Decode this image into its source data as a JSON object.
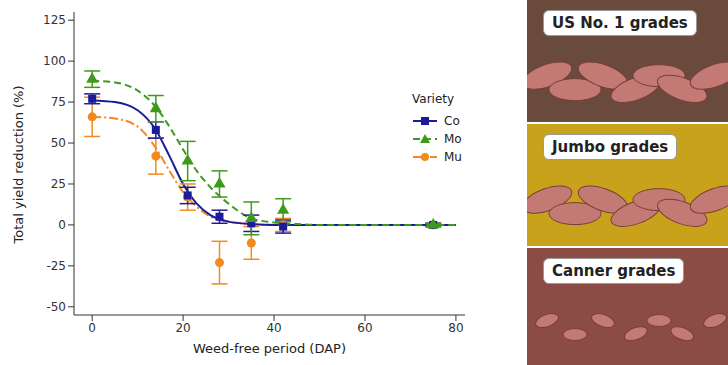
{
  "chart_data": {
    "type": "scatter",
    "x_label": "Weed-free period (DAP)",
    "y_label": "Total yield reduction (%)",
    "x": [
      0,
      14,
      21,
      28,
      35,
      42,
      75
    ],
    "xlim": [
      -4,
      82
    ],
    "xticks": [
      0,
      20,
      40,
      60,
      80
    ],
    "ylim": [
      -55,
      130
    ],
    "yticks": [
      -50,
      -25,
      0,
      25,
      50,
      75,
      100,
      125
    ],
    "grid": false,
    "legend": "right",
    "legend_title": "Variety",
    "fit_x": [
      0,
      5,
      10,
      14,
      17,
      20,
      23,
      26,
      30,
      35,
      40,
      45,
      50,
      60,
      80
    ],
    "series": [
      {
        "name": "Mu",
        "color": "#f28a1f",
        "marker": "circle",
        "line_style": "dotdash",
        "values": [
          66,
          42,
          17,
          -23,
          -11,
          0,
          0
        ],
        "errors": [
          12,
          11,
          8,
          13,
          10,
          4,
          1
        ],
        "fit_values": [
          66,
          65,
          60,
          47,
          33,
          20,
          11,
          5,
          2,
          0.5,
          0,
          0,
          0,
          0,
          0
        ]
      },
      {
        "name": "Co",
        "color": "#1c1c9a",
        "marker": "square",
        "line_style": "solid",
        "values": [
          77,
          58,
          18,
          5,
          1,
          -1,
          0
        ],
        "errors": [
          3,
          5,
          5,
          4,
          5,
          4,
          1
        ],
        "fit_values": [
          76,
          75,
          70,
          58,
          42,
          25,
          13,
          6,
          2,
          0.5,
          0,
          0,
          0,
          0,
          0
        ]
      },
      {
        "name": "Mo",
        "color": "#3e9a1c",
        "marker": "triangle",
        "line_style": "dashed",
        "values": [
          89,
          71,
          39,
          25,
          4,
          9,
          0
        ],
        "errors": [
          5,
          8,
          12,
          8,
          10,
          7,
          1
        ],
        "fit_values": [
          88,
          87,
          82,
          72,
          60,
          46,
          33,
          23,
          13,
          4,
          1.5,
          0.5,
          0,
          0,
          0
        ]
      }
    ]
  },
  "image_panels": {
    "labels": [
      "US No. 1 grades",
      "Jumbo grades",
      "Canner grades"
    ]
  }
}
